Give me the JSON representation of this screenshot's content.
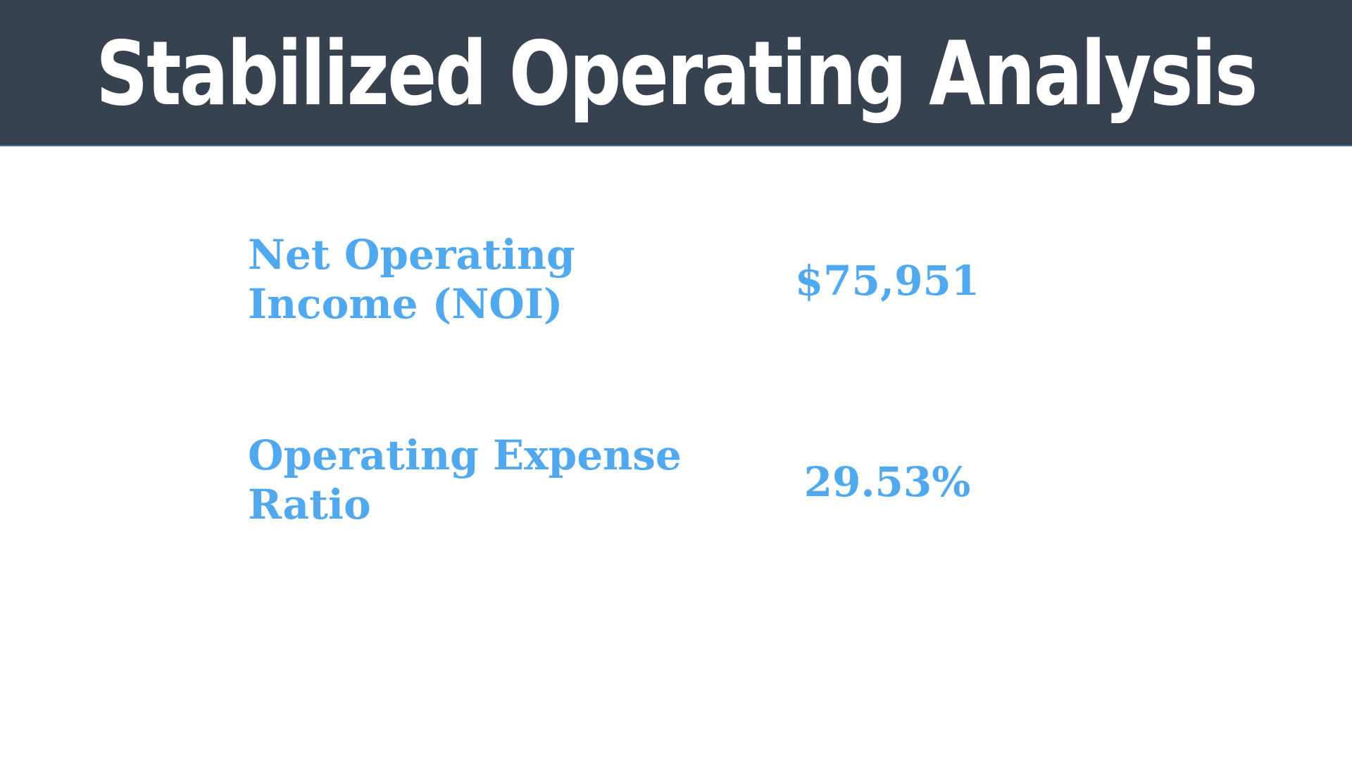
{
  "title": "Stabilized Operating Analysis",
  "metrics": [
    {
      "label": "Net Operating Income (NOI)",
      "value": "$75,951"
    },
    {
      "label": "Operating Expense Ratio",
      "value": "29.53%"
    }
  ],
  "colors": {
    "header_background": "#36424f",
    "header_text": "#ffffff",
    "accent": "#50a8ee",
    "background": "#ffffff"
  }
}
